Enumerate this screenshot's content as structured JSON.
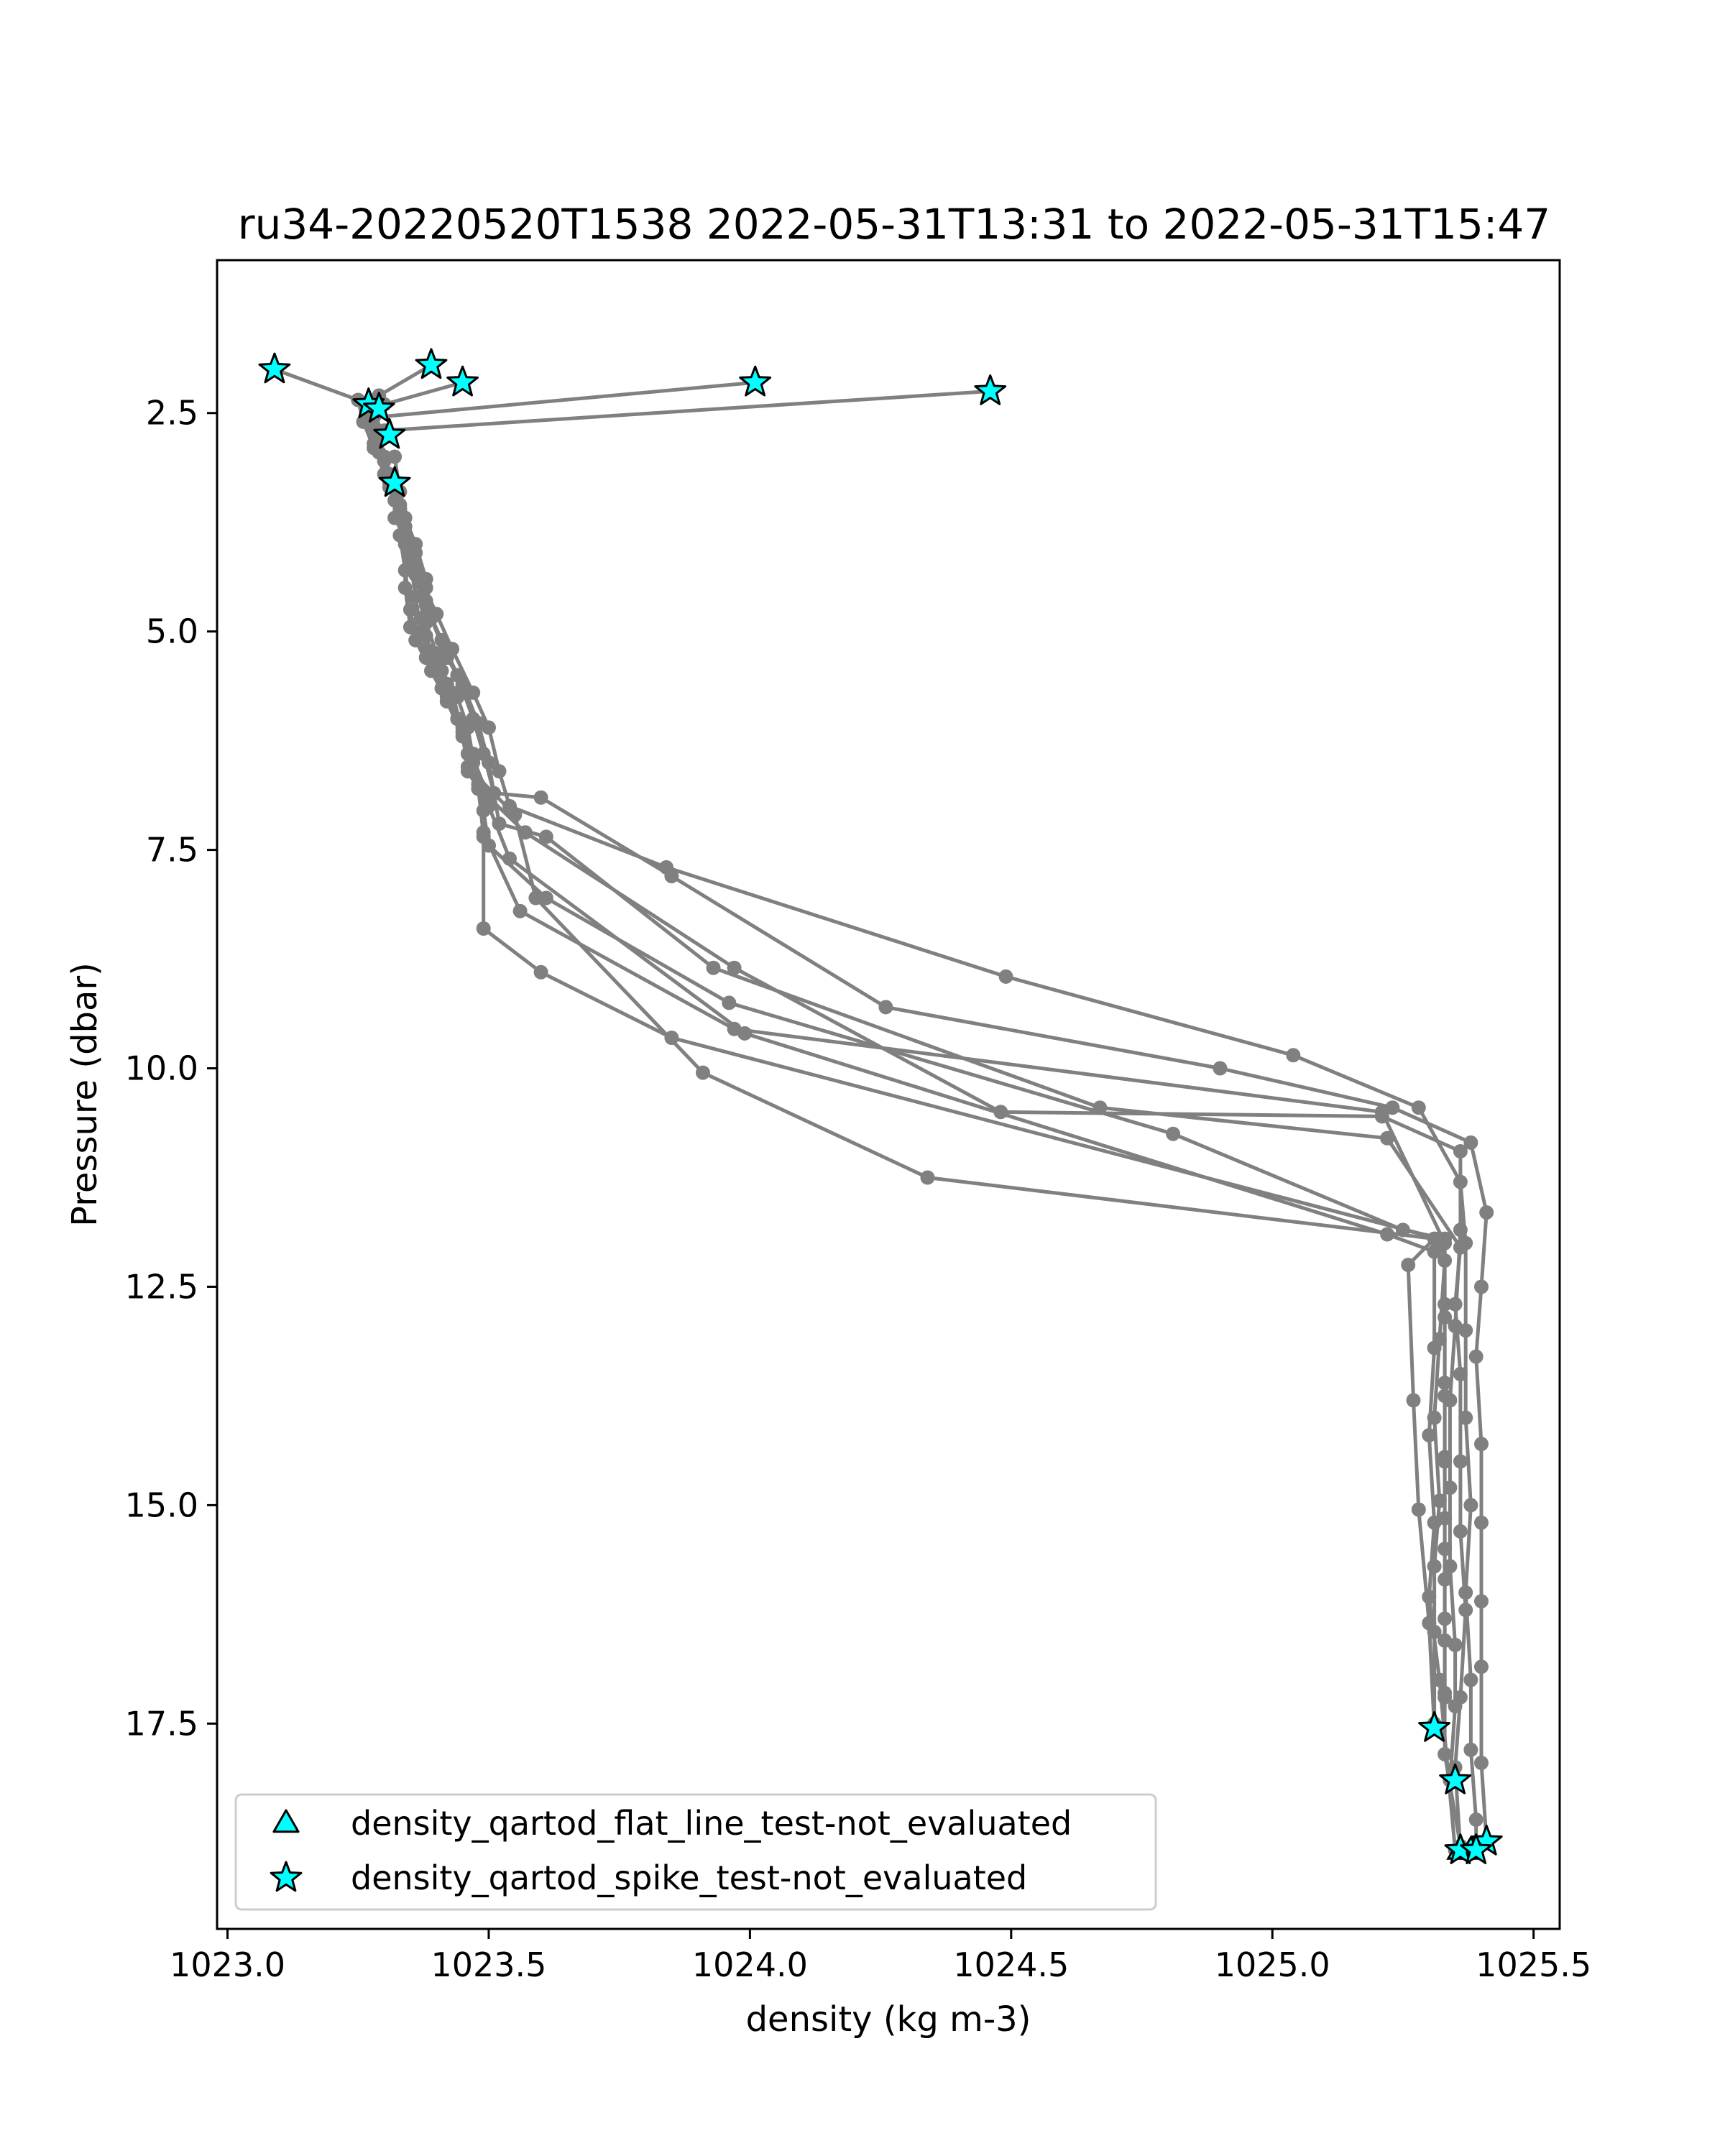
{
  "chart_data": {
    "type": "scatter",
    "title": "ru34-20220520T1538 2022-05-31T13:31 to 2022-05-31T15:47",
    "xlabel": "density (kg m-3)",
    "ylabel": "Pressure (dbar)",
    "xlim": [
      1022.98,
      1025.55
    ],
    "ylim": [
      19.85,
      0.75
    ],
    "y_inverted": true,
    "xticks": [
      1023.0,
      1023.5,
      1024.0,
      1024.5,
      1025.0,
      1025.5
    ],
    "xtick_labels": [
      "1023.0",
      "1023.5",
      "1024.0",
      "1024.5",
      "1025.0",
      "1025.5"
    ],
    "yticks": [
      2.5,
      5.0,
      7.5,
      10.0,
      12.5,
      15.0,
      17.5
    ],
    "ytick_labels": [
      "2.5",
      "5.0",
      "7.5",
      "10.0",
      "12.5",
      "15.0",
      "17.5"
    ],
    "grid": false,
    "legend_position": "lower-left",
    "colors": {
      "profile_line": "#808080",
      "flag_fill": "#00ffff",
      "flag_edge": "#000000"
    },
    "series": [
      {
        "points": [
          [
            1023.09,
            2.0
          ],
          [
            1023.25,
            2.35
          ],
          [
            1023.26,
            2.6
          ],
          [
            1023.28,
            2.9
          ],
          [
            1023.32,
            3.3
          ],
          [
            1023.33,
            3.6
          ],
          [
            1023.35,
            4.0
          ],
          [
            1023.37,
            4.4
          ],
          [
            1023.4,
            4.8
          ],
          [
            1023.43,
            5.2
          ],
          [
            1023.47,
            5.7
          ],
          [
            1023.5,
            6.1
          ],
          [
            1023.52,
            6.6
          ],
          [
            1023.54,
            7.0
          ],
          [
            1023.84,
            7.7
          ],
          [
            1024.49,
            8.95
          ],
          [
            1025.04,
            9.85
          ],
          [
            1025.28,
            10.45
          ],
          [
            1025.36,
            11.3
          ],
          [
            1025.37,
            12.0
          ],
          [
            1025.37,
            13.0
          ],
          [
            1025.37,
            14.0
          ],
          [
            1025.38,
            15.0
          ],
          [
            1025.37,
            16.0
          ],
          [
            1025.38,
            17.0
          ],
          [
            1025.38,
            17.8
          ],
          [
            1025.39,
            18.6
          ],
          [
            1025.39,
            18.95
          ]
        ]
      },
      {
        "points": [
          [
            1023.39,
            1.95
          ],
          [
            1023.29,
            2.3
          ],
          [
            1023.27,
            2.5
          ],
          [
            1023.29,
            2.8
          ],
          [
            1023.31,
            3.2
          ],
          [
            1023.32,
            3.5
          ],
          [
            1023.34,
            3.9
          ],
          [
            1023.36,
            4.3
          ],
          [
            1023.38,
            4.7
          ],
          [
            1023.41,
            5.1
          ],
          [
            1023.44,
            5.5
          ],
          [
            1023.47,
            6.0
          ],
          [
            1023.49,
            6.4
          ],
          [
            1023.51,
            6.85
          ],
          [
            1023.6,
            6.9
          ],
          [
            1023.85,
            7.8
          ],
          [
            1024.26,
            9.3
          ],
          [
            1024.9,
            10.0
          ],
          [
            1025.23,
            10.45
          ],
          [
            1025.38,
            10.85
          ],
          [
            1025.41,
            11.65
          ],
          [
            1025.4,
            12.5
          ],
          [
            1025.39,
            13.3
          ],
          [
            1025.4,
            14.3
          ],
          [
            1025.4,
            15.2
          ],
          [
            1025.4,
            16.1
          ],
          [
            1025.4,
            16.85
          ],
          [
            1025.4,
            17.95
          ],
          [
            1025.41,
            18.85
          ]
        ]
      },
      {
        "points": [
          [
            1023.45,
            2.15
          ],
          [
            1023.3,
            2.4
          ],
          [
            1023.27,
            2.55
          ],
          [
            1023.28,
            2.85
          ],
          [
            1023.3,
            3.2
          ],
          [
            1023.33,
            3.55
          ],
          [
            1023.36,
            4.0
          ],
          [
            1023.38,
            4.4
          ],
          [
            1023.39,
            4.85
          ],
          [
            1023.42,
            5.3
          ],
          [
            1023.45,
            5.6
          ],
          [
            1023.48,
            6.05
          ],
          [
            1023.5,
            6.5
          ],
          [
            1023.52,
            7.2
          ],
          [
            1023.61,
            7.35
          ],
          [
            1023.93,
            8.85
          ],
          [
            1024.67,
            10.45
          ],
          [
            1025.22,
            10.8
          ],
          [
            1025.36,
            12.05
          ],
          [
            1025.35,
            12.7
          ],
          [
            1025.36,
            13.5
          ],
          [
            1025.36,
            14.5
          ],
          [
            1025.36,
            15.3
          ],
          [
            1025.37,
            16.2
          ],
          [
            1025.36,
            17.2
          ],
          [
            1025.35,
            18.0
          ],
          [
            1025.36,
            18.95
          ]
        ]
      },
      {
        "points": [
          [
            1024.01,
            2.15
          ],
          [
            1023.28,
            2.55
          ],
          [
            1023.29,
            2.75
          ],
          [
            1023.3,
            3.05
          ],
          [
            1023.32,
            3.35
          ],
          [
            1023.34,
            3.7
          ],
          [
            1023.36,
            4.1
          ],
          [
            1023.38,
            4.5
          ],
          [
            1023.37,
            4.85
          ],
          [
            1023.38,
            5.2
          ],
          [
            1023.41,
            5.45
          ],
          [
            1023.44,
            5.75
          ],
          [
            1023.46,
            6.1
          ],
          [
            1023.47,
            6.45
          ],
          [
            1023.5,
            6.9
          ],
          [
            1023.57,
            7.3
          ],
          [
            1023.97,
            8.85
          ],
          [
            1024.48,
            10.5
          ],
          [
            1025.21,
            10.55
          ],
          [
            1025.36,
            10.95
          ],
          [
            1025.36,
            11.85
          ],
          [
            1025.35,
            12.95
          ],
          [
            1025.34,
            13.8
          ],
          [
            1025.34,
            14.8
          ],
          [
            1025.34,
            15.7
          ],
          [
            1025.35,
            16.6
          ],
          [
            1025.35,
            17.3
          ],
          [
            1025.34,
            18.15
          ]
        ]
      },
      {
        "points": [
          [
            1024.46,
            2.25
          ],
          [
            1023.3,
            2.7
          ],
          [
            1023.29,
            2.95
          ],
          [
            1023.31,
            3.25
          ],
          [
            1023.33,
            3.6
          ],
          [
            1023.34,
            4.0
          ],
          [
            1023.36,
            4.35
          ],
          [
            1023.38,
            4.65
          ],
          [
            1023.38,
            5.05
          ],
          [
            1023.4,
            5.4
          ],
          [
            1023.42,
            5.75
          ],
          [
            1023.45,
            6.1
          ],
          [
            1023.47,
            6.5
          ],
          [
            1023.49,
            7.05
          ],
          [
            1023.5,
            7.45
          ],
          [
            1023.61,
            8.05
          ],
          [
            1023.96,
            9.25
          ],
          [
            1024.81,
            10.75
          ],
          [
            1025.25,
            11.85
          ],
          [
            1025.33,
            11.95
          ],
          [
            1025.33,
            12.85
          ],
          [
            1025.33,
            13.75
          ],
          [
            1025.33,
            14.45
          ],
          [
            1025.33,
            15.15
          ],
          [
            1025.33,
            15.85
          ],
          [
            1025.33,
            16.55
          ],
          [
            1025.33,
            17.15
          ],
          [
            1025.33,
            17.85
          ],
          [
            1025.36,
            18.9
          ]
        ]
      },
      {
        "points": [
          [
            1023.27,
            2.4
          ],
          [
            1023.28,
            2.65
          ],
          [
            1023.3,
            3.0
          ],
          [
            1023.32,
            3.3
          ],
          [
            1023.32,
            3.7
          ],
          [
            1023.35,
            4.05
          ],
          [
            1023.37,
            4.45
          ],
          [
            1023.38,
            4.9
          ],
          [
            1023.4,
            5.25
          ],
          [
            1023.42,
            5.6
          ],
          [
            1023.44,
            6.0
          ],
          [
            1023.46,
            6.4
          ],
          [
            1023.48,
            6.8
          ],
          [
            1023.49,
            7.3
          ],
          [
            1023.56,
            8.2
          ],
          [
            1023.97,
            9.55
          ],
          [
            1025.21,
            10.5
          ],
          [
            1025.33,
            12.0
          ],
          [
            1025.33,
            12.7
          ],
          [
            1025.33,
            13.6
          ],
          [
            1025.33,
            14.5
          ],
          [
            1025.33,
            15.5
          ],
          [
            1025.33,
            16.3
          ],
          [
            1025.33,
            17.2
          ]
        ]
      },
      {
        "points": [
          [
            1023.31,
            3.3
          ],
          [
            1023.33,
            3.6
          ],
          [
            1023.34,
            4.0
          ],
          [
            1023.34,
            4.5
          ],
          [
            1023.35,
            4.95
          ],
          [
            1023.38,
            5.3
          ],
          [
            1023.41,
            5.65
          ],
          [
            1023.44,
            6.0
          ],
          [
            1023.47,
            6.4
          ],
          [
            1023.48,
            6.75
          ],
          [
            1023.49,
            7.35
          ],
          [
            1023.49,
            8.4
          ],
          [
            1023.6,
            8.9
          ],
          [
            1023.85,
            9.65
          ],
          [
            1025.32,
            11.95
          ],
          [
            1025.33,
            12.2
          ],
          [
            1025.32,
            13.1
          ],
          [
            1025.31,
            14.0
          ],
          [
            1025.32,
            14.95
          ],
          [
            1025.31,
            15.7
          ],
          [
            1025.31,
            16.45
          ],
          [
            1025.31,
            17.5
          ]
        ]
      },
      {
        "points": [
          [
            1023.32,
            3.0
          ],
          [
            1023.33,
            3.4
          ],
          [
            1023.33,
            3.9
          ],
          [
            1023.34,
            4.3
          ],
          [
            1023.35,
            4.75
          ],
          [
            1023.36,
            5.1
          ],
          [
            1023.39,
            5.45
          ],
          [
            1023.42,
            5.8
          ],
          [
            1023.45,
            6.2
          ],
          [
            1023.46,
            6.55
          ],
          [
            1023.55,
            7.1
          ],
          [
            1023.59,
            8.05
          ],
          [
            1023.91,
            10.05
          ],
          [
            1024.34,
            11.25
          ],
          [
            1025.31,
            11.95
          ],
          [
            1025.26,
            12.25
          ],
          [
            1025.27,
            13.8
          ],
          [
            1025.28,
            15.05
          ],
          [
            1025.3,
            16.35
          ],
          [
            1025.31,
            17.55
          ]
        ]
      },
      {
        "points": [
          [
            1023.31,
            3.35
          ],
          [
            1023.34,
            3.8
          ],
          [
            1023.35,
            4.2
          ],
          [
            1023.36,
            4.6
          ],
          [
            1023.37,
            5.0
          ],
          [
            1023.4,
            5.35
          ],
          [
            1023.43,
            5.7
          ],
          [
            1023.45,
            6.15
          ],
          [
            1023.46,
            6.6
          ],
          [
            1023.5,
            7.0
          ],
          [
            1023.54,
            7.6
          ],
          [
            1023.99,
            9.6
          ],
          [
            1025.22,
            11.9
          ],
          [
            1025.31,
            12.1
          ],
          [
            1025.31,
            13.2
          ],
          [
            1025.3,
            14.2
          ],
          [
            1025.31,
            15.2
          ],
          [
            1025.3,
            16.05
          ],
          [
            1025.32,
            17.0
          ],
          [
            1025.35,
            18.95
          ]
        ]
      }
    ],
    "flags": {
      "spike_points": [
        [
          1023.09,
          2.0
        ],
        [
          1023.39,
          1.95
        ],
        [
          1023.45,
          2.15
        ],
        [
          1024.01,
          2.15
        ],
        [
          1024.46,
          2.25
        ],
        [
          1023.27,
          2.4
        ],
        [
          1023.29,
          2.45
        ],
        [
          1023.31,
          2.75
        ],
        [
          1023.32,
          3.3
        ],
        [
          1025.31,
          17.55
        ],
        [
          1025.35,
          18.15
        ],
        [
          1025.41,
          18.85
        ],
        [
          1025.36,
          18.95
        ],
        [
          1025.39,
          18.95
        ]
      ],
      "flat_line_points": [
        [
          1025.38,
          18.95
        ],
        [
          1025.36,
          18.95
        ]
      ]
    },
    "legend": [
      {
        "marker": "triangle",
        "label": "density_qartod_flat_line_test-not_evaluated"
      },
      {
        "marker": "star",
        "label": "density_qartod_spike_test-not_evaluated"
      }
    ]
  }
}
